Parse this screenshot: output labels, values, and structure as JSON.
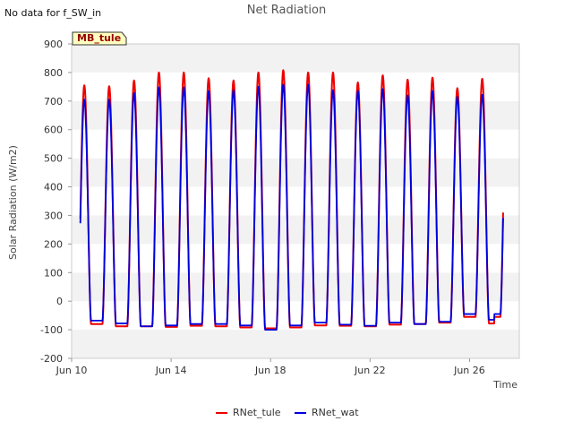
{
  "header": {
    "nodata_note": "No data for f_SW_in",
    "title": "Net Radiation"
  },
  "site_badge": "MB_tule",
  "chart_data": {
    "type": "line",
    "title": "Net Radiation",
    "xlabel": "Time",
    "ylabel": "Solar Radiation (W/m2)",
    "ylim": [
      -200,
      900
    ],
    "yticks": [
      -200,
      -100,
      0,
      100,
      200,
      300,
      400,
      500,
      600,
      700,
      800,
      900
    ],
    "xlim_day": [
      10,
      28
    ],
    "xticks": [
      {
        "day": 10,
        "label": "Jun 10"
      },
      {
        "day": 14,
        "label": "Jun 14"
      },
      {
        "day": 18,
        "label": "Jun 18"
      },
      {
        "day": 22,
        "label": "Jun 22"
      },
      {
        "day": 26,
        "label": "Jun 26"
      }
    ],
    "grid": "horizontal bands",
    "legend_position": "bottom",
    "series": [
      {
        "name": "RNet_tule",
        "color": "#ee0000",
        "daily_peak": [
          755,
          752,
          772,
          800,
          800,
          780,
          772,
          800,
          808,
          800,
          800,
          765,
          790,
          775,
          782,
          745,
          778
        ],
        "night_values": [
          -75,
          -80,
          -88,
          -88,
          -90,
          -86,
          -88,
          -92,
          -95,
          -92,
          -85,
          -86,
          -88,
          -82,
          -80,
          -75,
          -55,
          -78
        ]
      },
      {
        "name": "RNet_wat",
        "color": "#0000dd",
        "daily_peak": [
          705,
          705,
          728,
          748,
          748,
          735,
          738,
          750,
          758,
          758,
          738,
          735,
          742,
          720,
          735,
          715,
          722
        ],
        "night_values": [
          -65,
          -68,
          -78,
          -88,
          -85,
          -80,
          -80,
          -85,
          -100,
          -85,
          -75,
          -82,
          -86,
          -75,
          -80,
          -72,
          -45,
          -65
        ]
      }
    ]
  }
}
